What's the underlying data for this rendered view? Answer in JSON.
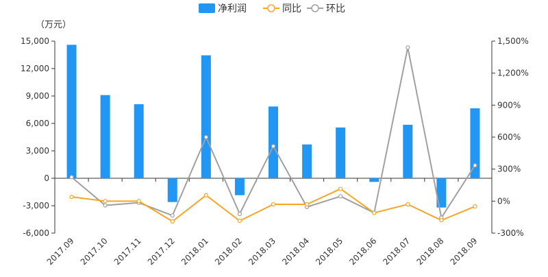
{
  "chart_data": {
    "type": "bar",
    "unit_label": "（万元）",
    "categories": [
      "2017.09",
      "2017.10",
      "2017.11",
      "2017.12",
      "2018.01",
      "2018.02",
      "2018.03",
      "2018.04",
      "2018.05",
      "2018.06",
      "2018.07",
      "2018.08",
      "2018.09"
    ],
    "series": [
      {
        "name": "净利润",
        "type": "bar",
        "axis": "left",
        "color": "#2196F3",
        "values": [
          14600,
          9100,
          8100,
          -2600,
          13450,
          -1850,
          7850,
          3700,
          5550,
          -400,
          5850,
          -3200,
          7650
        ]
      },
      {
        "name": "同比",
        "type": "line",
        "axis": "right",
        "color": "#F5A623",
        "values": [
          40,
          0,
          0,
          -190,
          55,
          -185,
          -30,
          -30,
          115,
          -110,
          -30,
          -180,
          -50
        ]
      },
      {
        "name": "环比",
        "type": "line",
        "axis": "right",
        "color": "#A0A0A0",
        "values": [
          225,
          -40,
          -15,
          -135,
          600,
          -120,
          515,
          -55,
          45,
          -110,
          1440,
          -155,
          335
        ]
      }
    ],
    "left_axis": {
      "ylim": [
        -6000,
        15000
      ],
      "ticks": [
        15000,
        12000,
        9000,
        6000,
        3000,
        0,
        -3000,
        -6000
      ],
      "tick_labels": [
        "15,000",
        "12,000",
        "9,000",
        "6,000",
        "3,000",
        "0",
        "-3,000",
        "-6,000"
      ]
    },
    "right_axis": {
      "ylim": [
        -300,
        1500
      ],
      "ticks": [
        1500,
        1200,
        900,
        600,
        300,
        0,
        -300
      ],
      "tick_labels": [
        "1,500%",
        "1,200%",
        "900%",
        "600%",
        "300%",
        "0%",
        "-300%"
      ]
    },
    "legend_position": "top-center",
    "grid": false
  }
}
